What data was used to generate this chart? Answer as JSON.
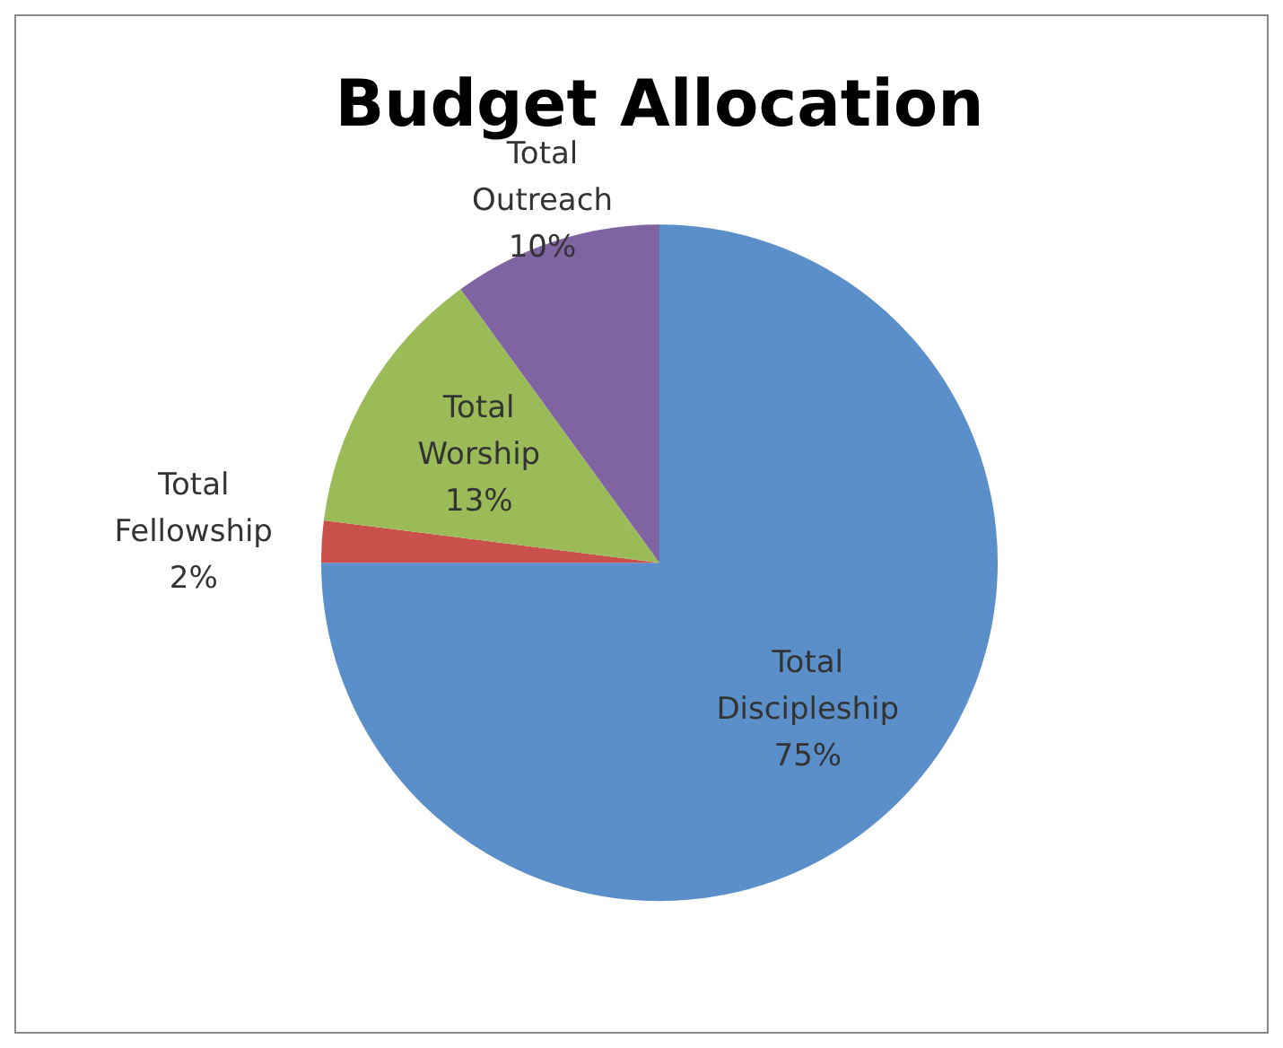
{
  "chart_data": {
    "type": "pie",
    "title": "Budget Allocation",
    "categories": [
      "Total Discipleship",
      "Total Fellowship",
      "Total Worship",
      "Total Outreach"
    ],
    "values": [
      75,
      2,
      13,
      10
    ],
    "colors": [
      "#5b8fc9",
      "#c9504b",
      "#9bbb59",
      "#8064a2"
    ],
    "value_labels": [
      "75%",
      "2%",
      "13%",
      "10%"
    ],
    "legend": false
  }
}
